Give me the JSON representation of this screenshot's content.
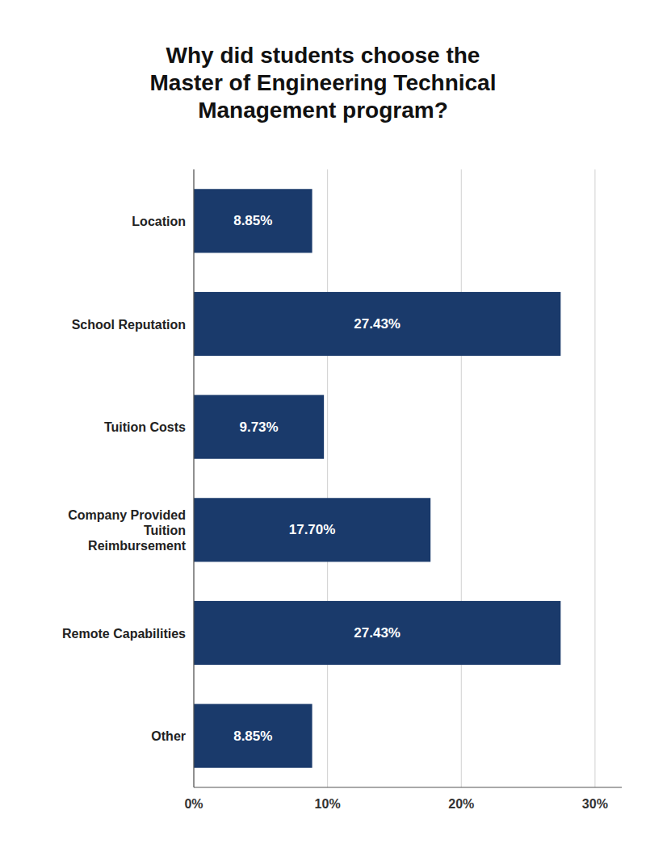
{
  "chart_data": {
    "type": "bar",
    "orientation": "horizontal",
    "title": "Why did students choose the\nMaster of Engineering Technical\nManagement program?",
    "categories": [
      "Location",
      "School Reputation",
      "Tuition Costs",
      "Company Provided\nTuition\nReimbursement",
      "Remote Capabilities",
      "Other"
    ],
    "values": [
      8.85,
      27.43,
      9.73,
      17.7,
      27.43,
      8.85
    ],
    "value_labels": [
      "8.85%",
      "27.43%",
      "9.73%",
      "17.70%",
      "27.43%",
      "8.85%"
    ],
    "data_labels": true,
    "color": "#1a3a6b",
    "xlim": [
      0,
      32
    ],
    "xticks": [
      {
        "value": 0,
        "label": "0%"
      },
      {
        "value": 10,
        "label": "10%"
      },
      {
        "value": 20,
        "label": "20%"
      },
      {
        "value": 30,
        "label": "30%"
      }
    ],
    "grid": true
  }
}
